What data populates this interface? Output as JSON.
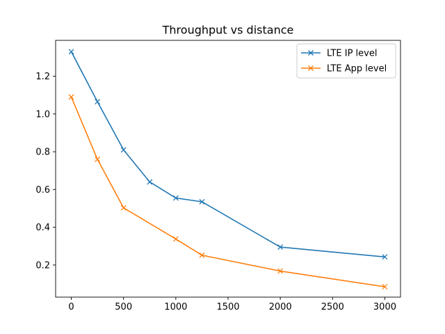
{
  "chart_data": {
    "type": "line",
    "title": "Throughput vs distance",
    "xlabel": "",
    "ylabel": "",
    "xlim": [
      -150,
      3150
    ],
    "ylim": [
      0.03,
      1.39
    ],
    "xticks": [
      0,
      500,
      1000,
      1500,
      2000,
      2500,
      3000
    ],
    "yticks": [
      0.2,
      0.4,
      0.6,
      0.8,
      1.0,
      1.2
    ],
    "ytick_labels": [
      "0.2",
      "0.4",
      "0.6",
      "0.8",
      "1.0",
      "1.2"
    ],
    "grid": false,
    "legend_position": "top-right",
    "series": [
      {
        "name": "LTE IP level",
        "color": "#1f77b4",
        "marker": "x",
        "x": [
          0,
          250,
          500,
          750,
          1000,
          1250,
          2000,
          3000
        ],
        "y": [
          1.33,
          1.065,
          0.81,
          0.64,
          0.555,
          0.535,
          0.295,
          0.243
        ]
      },
      {
        "name": "LTE App level",
        "color": "#ff7f0e",
        "marker": "x",
        "x": [
          0,
          250,
          500,
          1000,
          1250,
          2000,
          3000
        ],
        "y": [
          1.09,
          0.76,
          0.503,
          0.338,
          0.252,
          0.168,
          0.085
        ]
      }
    ]
  }
}
